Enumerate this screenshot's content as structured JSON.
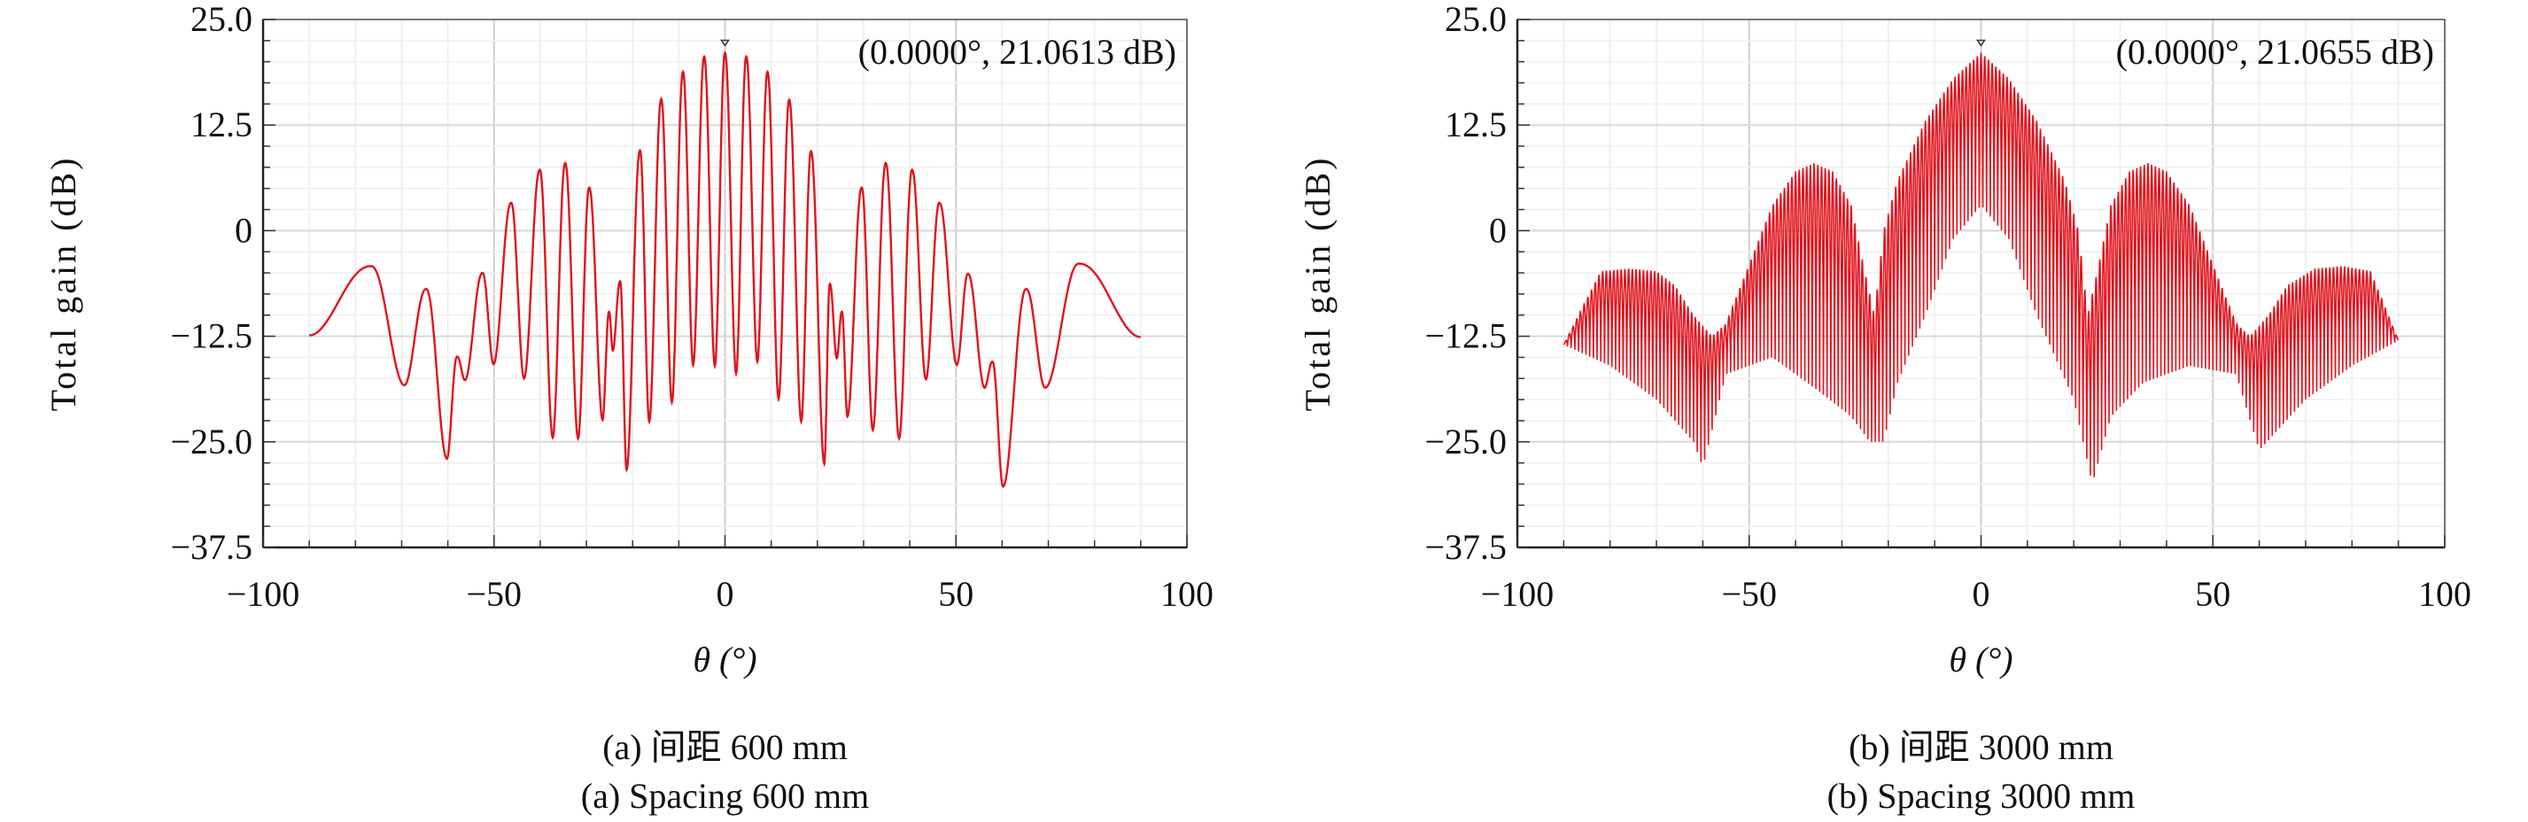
{
  "colors": {
    "line": "#e0141e",
    "grid": "#dcdcdc",
    "axis": "#333333"
  },
  "chart_data": [
    {
      "type": "line",
      "caption_cn": "(a) 间距 600 mm",
      "caption_en": "(a) Spacing 600 mm",
      "xlabel": "θ (°)",
      "ylabel": "Total gain (dB)",
      "xlim": [
        -100,
        100
      ],
      "ylim": [
        -37.5,
        25.0
      ],
      "xticks": [
        "−100",
        "−50",
        "0",
        "50",
        "100"
      ],
      "xtick_values": [
        -100,
        -50,
        0,
        50,
        100
      ],
      "yticks": [
        "25.0",
        "12.5",
        "0",
        "−12.5",
        "−25.0",
        "−37.5"
      ],
      "ytick_values": [
        25,
        12.5,
        0,
        -12.5,
        -25,
        -37.5
      ],
      "grid": true,
      "annotation": "(0.0000°, 21.0613 dB)",
      "marker": {
        "x": 0,
        "y": 21.0613
      },
      "series": [
        {
          "name": "Total gain",
          "points": [
            [
              -90,
              -12.4
            ],
            [
              -76.6,
              -4.2
            ],
            [
              -69.4,
              -18.3
            ],
            [
              -64.7,
              -6.9
            ],
            [
              -60.2,
              -27
            ],
            [
              -58,
              -14.9
            ],
            [
              -56.3,
              -17.7
            ],
            [
              -52.5,
              -5
            ],
            [
              -50.1,
              -15.8
            ],
            [
              -46.3,
              3.3
            ],
            [
              -43.5,
              -17.5
            ],
            [
              -40.1,
              7.2
            ],
            [
              -37.3,
              -24.5
            ],
            [
              -34.6,
              8
            ],
            [
              -31.8,
              -24.6
            ],
            [
              -29.4,
              5.1
            ],
            [
              -26.5,
              -22.4
            ],
            [
              -25.1,
              -9.6
            ],
            [
              -24.3,
              -14.2
            ],
            [
              -22.7,
              -6
            ],
            [
              -21.3,
              -28.3
            ],
            [
              -18.4,
              9.5
            ],
            [
              -16.4,
              -22.6
            ],
            [
              -13.8,
              15.6
            ],
            [
              -11.5,
              -20.3
            ],
            [
              -9.1,
              18.8
            ],
            [
              -6.9,
              -15.9
            ],
            [
              -4.5,
              20.6
            ],
            [
              -2.2,
              -16
            ],
            [
              0,
              21.0613
            ],
            [
              2.4,
              -16.9
            ],
            [
              4.6,
              20.6
            ],
            [
              7,
              -15.5
            ],
            [
              9.2,
              18.8
            ],
            [
              11.6,
              -19.9
            ],
            [
              13.9,
              15.5
            ],
            [
              16.5,
              -22.6
            ],
            [
              18.6,
              9.4
            ],
            [
              21.5,
              -27.6
            ],
            [
              22.7,
              -6.3
            ],
            [
              24.2,
              -15.1
            ],
            [
              25.3,
              -9.6
            ],
            [
              26.5,
              -22
            ],
            [
              29.6,
              5.1
            ],
            [
              32,
              -23.6
            ],
            [
              34.8,
              8
            ],
            [
              37.7,
              -24.6
            ],
            [
              40.5,
              7.2
            ],
            [
              43.5,
              -17.6
            ],
            [
              46.4,
              3.3
            ],
            [
              50.2,
              -15.9
            ],
            [
              52.6,
              -5.1
            ],
            [
              56.2,
              -18.6
            ],
            [
              57.9,
              -15.5
            ],
            [
              60.2,
              -30.3
            ],
            [
              65.2,
              -6.9
            ],
            [
              69.3,
              -18.6
            ],
            [
              76.6,
              -3.9
            ],
            [
              90,
              -12.6
            ]
          ]
        }
      ]
    },
    {
      "type": "line",
      "caption_cn": "(b) 间距 3000 mm",
      "caption_en": "(b) Spacing 3000 mm",
      "xlabel": "θ (°)",
      "ylabel": "Total gain (dB)",
      "xlim": [
        -100,
        100
      ],
      "ylim": [
        -37.5,
        25.0
      ],
      "xticks": [
        "−100",
        "−50",
        "0",
        "50",
        "100"
      ],
      "xtick_values": [
        -100,
        -50,
        0,
        50,
        100
      ],
      "yticks": [
        "25.0",
        "12.5",
        "0",
        "−12.5",
        "−25.0",
        "−37.5"
      ],
      "ytick_values": [
        25,
        12.5,
        0,
        -12.5,
        -25,
        -37.5
      ],
      "grid": true,
      "annotation": "(0.0000°, 21.0655 dB)",
      "marker": {
        "x": 0,
        "y": 21.0655
      },
      "series": [
        {
          "name": "Total gain",
          "ripple_period_deg": 0.8,
          "upper_envelope": [
            [
              -90,
              -13.5
            ],
            [
              -82,
              -4.8
            ],
            [
              -76,
              -4.5
            ],
            [
              -70,
              -4.8
            ],
            [
              -66,
              -6.5
            ],
            [
              -62,
              -10
            ],
            [
              -58,
              -12.5
            ],
            [
              -55,
              -11
            ],
            [
              -50,
              -4
            ],
            [
              -45,
              3
            ],
            [
              -40,
              7
            ],
            [
              -36,
              8
            ],
            [
              -32,
              7
            ],
            [
              -28,
              3
            ],
            [
              -25,
              -5
            ],
            [
              -23,
              -10
            ],
            [
              -21,
              0
            ],
            [
              -18,
              6
            ],
            [
              -12,
              13
            ],
            [
              -6,
              18
            ],
            [
              0,
              21.0655
            ],
            [
              6,
              18
            ],
            [
              12,
              13
            ],
            [
              18,
              6
            ],
            [
              21,
              0
            ],
            [
              23,
              -10
            ],
            [
              25,
              -5
            ],
            [
              28,
              3
            ],
            [
              32,
              7
            ],
            [
              36,
              8
            ],
            [
              40,
              7
            ],
            [
              45,
              3
            ],
            [
              50,
              -4
            ],
            [
              55,
              -11
            ],
            [
              58,
              -12.5
            ],
            [
              62,
              -10
            ],
            [
              66,
              -6.5
            ],
            [
              72,
              -4.5
            ],
            [
              78,
              -4.2
            ],
            [
              84,
              -4.8
            ],
            [
              90,
              -13
            ]
          ],
          "lower_envelope": [
            [
              -90,
              -13.5
            ],
            [
              -80,
              -16
            ],
            [
              -70,
              -20
            ],
            [
              -62,
              -25
            ],
            [
              -60,
              -28
            ],
            [
              -55,
              -17
            ],
            [
              -45,
              -15
            ],
            [
              -35,
              -19
            ],
            [
              -28,
              -22
            ],
            [
              -24,
              -25
            ],
            [
              -21,
              -25
            ],
            [
              -18,
              -18
            ],
            [
              -12,
              -10
            ],
            [
              -6,
              -1
            ],
            [
              0,
              3
            ],
            [
              6,
              -1
            ],
            [
              12,
              -10
            ],
            [
              16,
              -15
            ],
            [
              20,
              -20
            ],
            [
              24,
              -30
            ],
            [
              28,
              -22
            ],
            [
              35,
              -18
            ],
            [
              45,
              -16
            ],
            [
              55,
              -17
            ],
            [
              60,
              -26
            ],
            [
              70,
              -20
            ],
            [
              80,
              -16
            ],
            [
              90,
              -13
            ]
          ]
        }
      ]
    }
  ]
}
